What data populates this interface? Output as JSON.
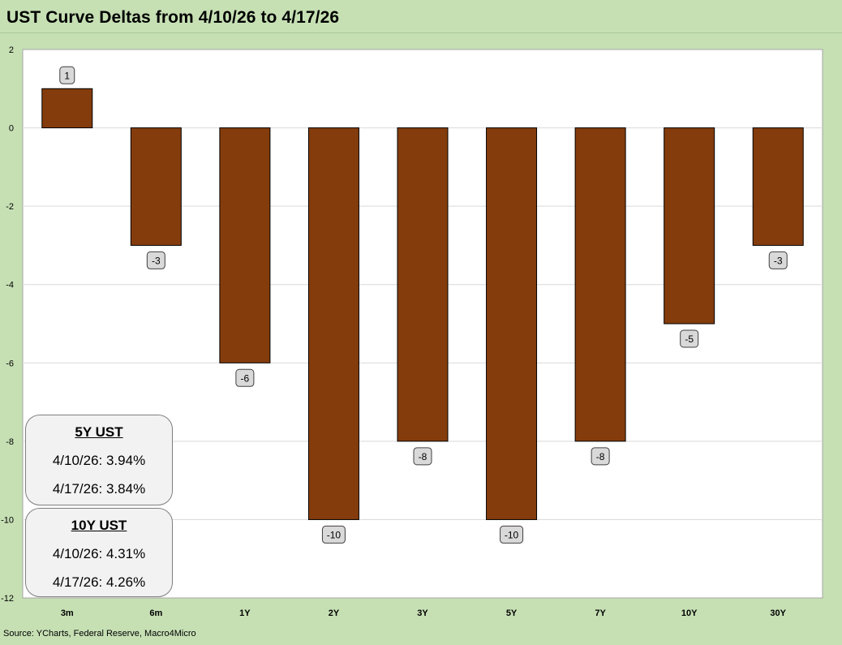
{
  "title": "UST Curve Deltas from 4/10/26 to 4/17/26",
  "source": "Source: YCharts, Federal Reserve, Macro4Micro",
  "colors": {
    "background": "#c6e0b4",
    "plot_area": "#ffffff",
    "bar": "#843c0c",
    "label_box": "#d9d9d9"
  },
  "chart_data": {
    "type": "bar",
    "categories": [
      "3m",
      "6m",
      "1Y",
      "2Y",
      "3Y",
      "5Y",
      "7Y",
      "10Y",
      "30Y"
    ],
    "values": [
      1,
      -3,
      -6,
      -10,
      -8,
      -10,
      -8,
      -5,
      -3
    ],
    "data_labels": [
      "1",
      "-3",
      "-6",
      "-10",
      "-8",
      "-10",
      "-8",
      "-5",
      "-3"
    ],
    "ylim": [
      -12,
      2
    ],
    "yticks": [
      2,
      0,
      -2,
      -4,
      -6,
      -8,
      -10,
      -12
    ],
    "ytick_labels": [
      "2",
      "0",
      "-2",
      "-4",
      "-6",
      "-8",
      "-10",
      "-12"
    ],
    "grid": true,
    "legend": "none"
  },
  "info_boxes": {
    "y5": {
      "heading": "5Y UST",
      "row1": "4/10/26:  3.94%",
      "row2": "4/17/26:  3.84%"
    },
    "y10": {
      "heading": "10Y UST",
      "row1": "4/10/26:  4.31%",
      "row2": "4/17/26:  4.26%"
    }
  }
}
